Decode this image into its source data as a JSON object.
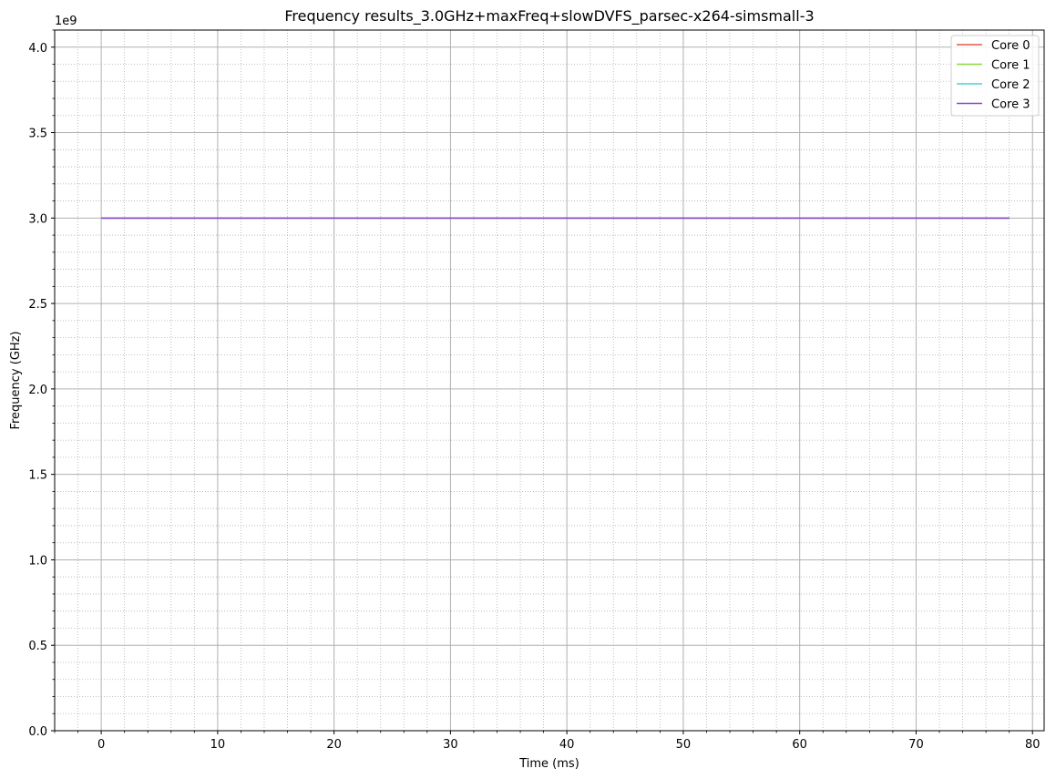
{
  "chart_data": {
    "type": "line",
    "title": "Frequency results_3.0GHz+maxFreq+slowDVFS_parsec-x264-simsmall-3",
    "xlabel": "Time (ms)",
    "ylabel": "Frequency (GHz)",
    "y_offset_label": "1e9",
    "xlim": [
      -4,
      81
    ],
    "ylim": [
      0,
      4100000000
    ],
    "x_ticks": [
      0,
      10,
      20,
      30,
      40,
      50,
      60,
      70,
      80
    ],
    "y_ticks": [
      0,
      500000000,
      1000000000,
      1500000000,
      2000000000,
      2500000000,
      3000000000,
      3500000000,
      4000000000
    ],
    "x_tick_labels": [
      "0",
      "10",
      "20",
      "30",
      "40",
      "50",
      "60",
      "70",
      "80"
    ],
    "y_tick_labels": [
      "0.0",
      "0.5",
      "1.0",
      "1.5",
      "2.0",
      "2.5",
      "3.0",
      "3.5",
      "4.0"
    ],
    "grid": true,
    "minor_grid": true,
    "legend_position": "top-right",
    "series": [
      {
        "name": "Core 0",
        "color": "#e05a4a",
        "x": [
          0,
          78
        ],
        "y": [
          3000000000,
          3000000000
        ]
      },
      {
        "name": "Core 1",
        "color": "#8ad93c",
        "x": [
          0,
          78
        ],
        "y": [
          3000000000,
          3000000000
        ]
      },
      {
        "name": "Core 2",
        "color": "#4fcfd4",
        "x": [
          0,
          78
        ],
        "y": [
          3000000000,
          3000000000
        ]
      },
      {
        "name": "Core 3",
        "color": "#8b44cf",
        "x": [
          0,
          78
        ],
        "y": [
          3000000000,
          3000000000
        ]
      }
    ]
  }
}
